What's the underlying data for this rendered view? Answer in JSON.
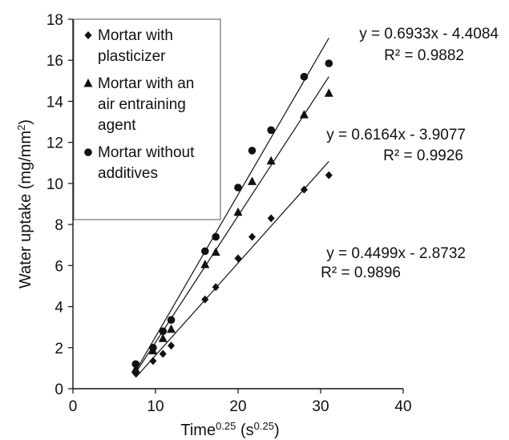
{
  "chart_data": {
    "type": "scatter",
    "title": "",
    "xlabel": {
      "base": "Time",
      "exp": "0.25",
      "unit_open": " (s",
      "unit_exp": "0.25",
      "unit_close": ")"
    },
    "ylabel": {
      "text": "Water uptake (mg/mm",
      "exp": "2",
      "close": ")"
    },
    "xlim": [
      0,
      40
    ],
    "ylim": [
      0,
      18
    ],
    "xticks": [
      0,
      10,
      20,
      30,
      40
    ],
    "yticks": [
      0,
      2,
      4,
      6,
      8,
      10,
      12,
      14,
      16,
      18
    ],
    "grid": false,
    "legend_position": "top-left",
    "series": [
      {
        "name": "Mortar with plasticizer",
        "name_lines": [
          "Mortar with",
          "plasticizer"
        ],
        "marker": "diamond",
        "x": [
          7.6,
          9.7,
          10.9,
          11.9,
          16.0,
          17.3,
          20.0,
          21.7,
          24.0,
          28.0,
          31.0
        ],
        "y": [
          0.75,
          1.35,
          1.7,
          2.1,
          4.35,
          4.95,
          6.35,
          7.4,
          8.3,
          9.7,
          10.4
        ],
        "trend": {
          "slope": 0.4499,
          "intercept": -2.8732,
          "x_range": [
            7.6,
            31.0
          ]
        },
        "equation": "y = 0.4499x - 2.8732",
        "r2": "R² = 0.9896"
      },
      {
        "name": "Mortar with an air entraining agent",
        "name_lines": [
          "Mortar with an",
          "air entraining",
          "agent"
        ],
        "marker": "triangle",
        "x": [
          7.6,
          9.7,
          10.9,
          11.9,
          16.0,
          17.3,
          20.0,
          21.7,
          24.0,
          28.0,
          31.0
        ],
        "y": [
          0.95,
          1.85,
          2.45,
          2.9,
          6.05,
          6.65,
          8.6,
          10.1,
          11.1,
          13.35,
          14.4
        ],
        "trend": {
          "slope": 0.6164,
          "intercept": -3.9077,
          "x_range": [
            7.6,
            31.0
          ]
        },
        "equation": "y = 0.6164x - 3.9077",
        "r2": "R² = 0.9926"
      },
      {
        "name": "Mortar without additives",
        "name_lines": [
          "Mortar without",
          "additives"
        ],
        "marker": "circle",
        "x": [
          7.6,
          9.7,
          10.9,
          11.9,
          16.0,
          17.3,
          20.0,
          21.7,
          24.0,
          28.0,
          31.0
        ],
        "y": [
          1.2,
          2.0,
          2.8,
          3.35,
          6.7,
          7.4,
          9.8,
          11.6,
          12.6,
          15.2,
          15.85
        ],
        "trend": {
          "slope": 0.6933,
          "intercept": -4.4084,
          "x_range": [
            7.6,
            31.0
          ]
        },
        "equation": "y = 0.6933x - 4.4084",
        "r2": "R² = 0.9882"
      }
    ],
    "colors": {
      "marker": "#111111",
      "axis": "#111111",
      "trendline": "#111111",
      "legend_border": "#555555"
    }
  }
}
